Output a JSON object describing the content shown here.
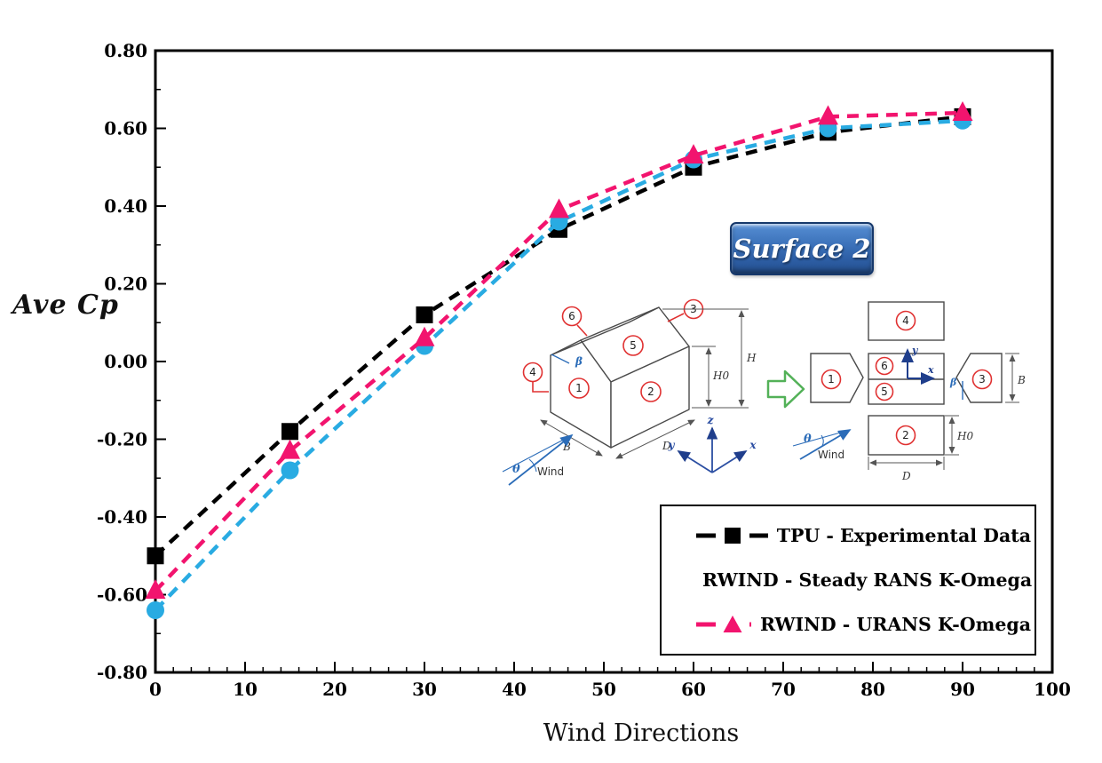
{
  "chart_data": {
    "type": "line",
    "title": "",
    "xlabel": "Wind Directions",
    "ylabel": "Ave Cp",
    "xlim": [
      0,
      100
    ],
    "ylim": [
      -0.8,
      0.8
    ],
    "x_tick_labels": [
      "0",
      "10",
      "20",
      "30",
      "40",
      "50",
      "60",
      "70",
      "80",
      "90",
      "100"
    ],
    "y_tick_labels": [
      "0.80",
      "0.60",
      "0.40",
      "0.20",
      "0.00",
      "-0.20",
      "-0.40",
      "-0.60",
      "-0.80"
    ],
    "x_minor_tick_step": 2,
    "y_minor_tick_step": 0.1,
    "grid": false,
    "line_style": "dashed",
    "legend_position": "lower-right-box",
    "x": [
      0,
      15,
      30,
      45,
      60,
      75,
      90
    ],
    "series": [
      {
        "name": "TPU - Experimental Data",
        "marker": "square",
        "color": "#000000",
        "values": [
          -0.5,
          -0.18,
          0.12,
          0.34,
          0.5,
          0.59,
          0.63
        ]
      },
      {
        "name": "RWIND - Steady RANS K-Omega",
        "marker": "circle",
        "color": "#29ABE2",
        "values": [
          -0.64,
          -0.28,
          0.04,
          0.36,
          0.52,
          0.6,
          0.62
        ]
      },
      {
        "name": "RWIND - URANS K-Omega",
        "marker": "triangle",
        "color": "#F2146E",
        "values": [
          -0.59,
          -0.23,
          0.06,
          0.39,
          0.53,
          0.63,
          0.64
        ]
      }
    ]
  },
  "badge": {
    "label": "Surface 2",
    "bg_color": "#3A70B8",
    "text_color": "#FFFFFF"
  },
  "inset": {
    "labels": {
      "s1": "1",
      "s2": "2",
      "s3": "3",
      "s4": "4",
      "s5": "5",
      "s6": "6",
      "beta": "β",
      "theta": "θ",
      "wind": "Wind",
      "B": "B",
      "D": "D",
      "H": "H",
      "H0": "H0",
      "x": "x",
      "y": "y",
      "z": "z"
    },
    "colors": {
      "surface_circle": "#E03131",
      "outline": "#4A4A4A",
      "annotation_blue": "#2B6CB8",
      "axis_navy": "#1F3E8C",
      "arrow_green": "#53B158"
    }
  }
}
